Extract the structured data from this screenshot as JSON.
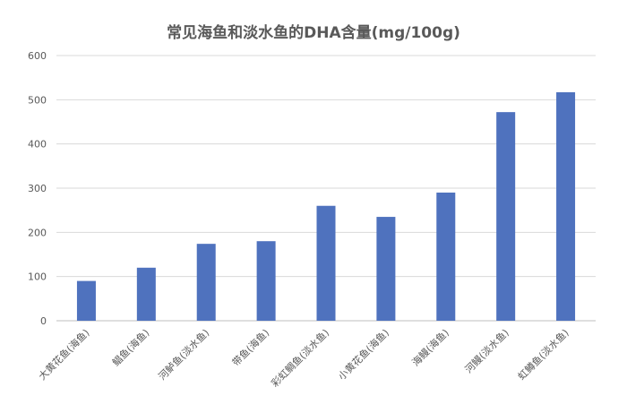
{
  "chart_data": {
    "type": "bar",
    "title": "常见海鱼和淡水鱼的DHA含量(mg/100g)",
    "categories": [
      "大黄花鱼(海鱼)",
      "鲳鱼(海鱼)",
      "河鲈鱼(淡水鱼)",
      "带鱼(海鱼)",
      "彩虹鲷鱼(淡水鱼)",
      "小黄花鱼(海鱼)",
      "海鳗(海鱼)",
      "河鳗(淡水鱼)",
      "虹鳟鱼(淡水鱼)"
    ],
    "values": [
      90,
      120,
      174,
      180,
      260,
      235,
      290,
      472,
      517
    ],
    "ylim": [
      0,
      600
    ],
    "yticks": [
      0,
      100,
      200,
      300,
      400,
      500,
      600
    ],
    "grid": true,
    "legend": "none",
    "colors": {
      "bar": "#4F72BE",
      "grid": "#D9D9D9",
      "axis": "#BFBFBF",
      "text": "#595959"
    }
  }
}
